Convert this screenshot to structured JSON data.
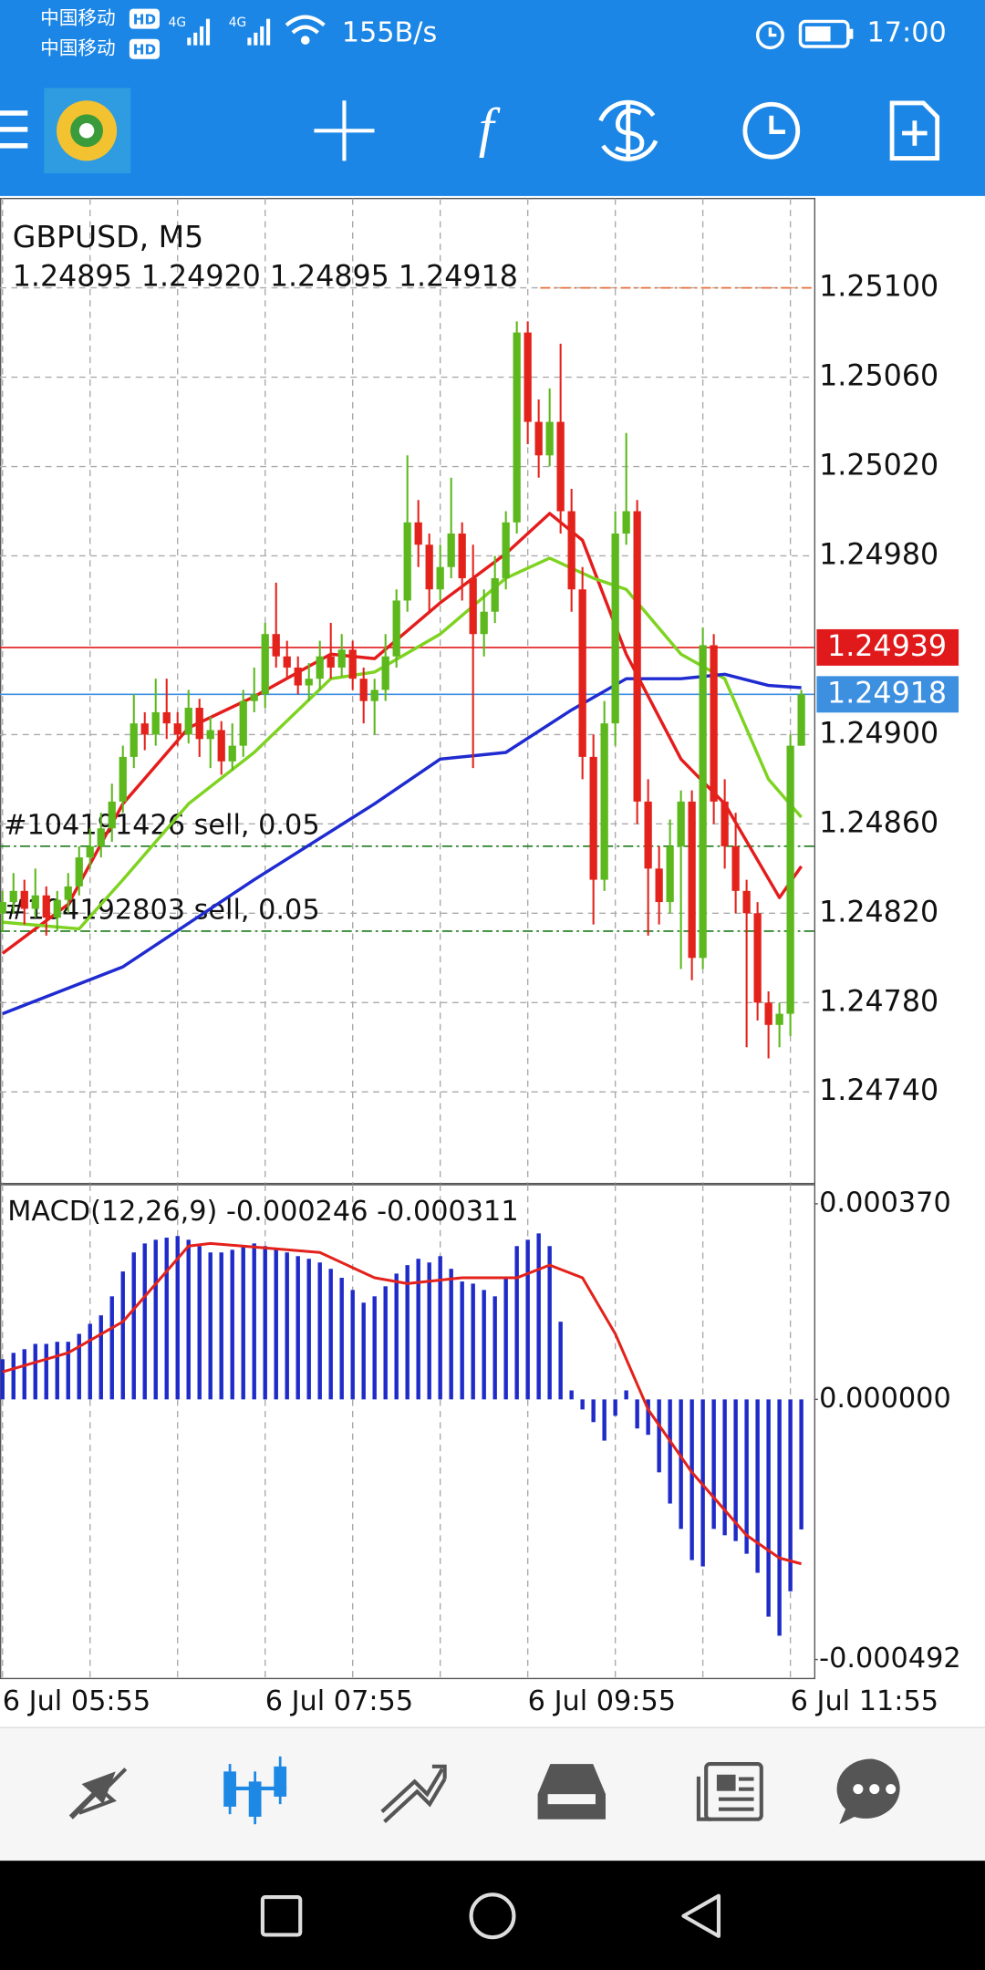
{
  "status_bar": {
    "carrier_1": "中国移动",
    "carrier_2": "中国移动",
    "hd_1": "HD",
    "hd_2": "HD",
    "network_1": "4G",
    "network_2": "4G",
    "speed": "155B/s",
    "time": "17:00"
  },
  "chart_data": [
    {
      "type": "candlestick",
      "title": "GBPUSD, M5",
      "subtitle": "1.24895 1.24920 1.24895 1.24918",
      "x": [
        0,
        1,
        2,
        3,
        4,
        5,
        6,
        7,
        8,
        9,
        10,
        11,
        12,
        13,
        14,
        15,
        16,
        17,
        18,
        19,
        20,
        21,
        22,
        23,
        24,
        25,
        26,
        27,
        28,
        29,
        30,
        31,
        32,
        33,
        34,
        35,
        36,
        37,
        38,
        39,
        40,
        41,
        42,
        43,
        44,
        45,
        46,
        47,
        48,
        49,
        50,
        51,
        52,
        53,
        54,
        55,
        56,
        57,
        58,
        59,
        60,
        61,
        62,
        63,
        64,
        65,
        66,
        67,
        68,
        69,
        70,
        71,
        72,
        73
      ],
      "open": [
        1.2482,
        1.24825,
        1.2483,
        1.24822,
        1.24828,
        1.24818,
        1.24826,
        1.24832,
        1.24845,
        1.2485,
        1.24858,
        1.2487,
        1.2489,
        1.24905,
        1.249,
        1.2491,
        1.24905,
        1.249,
        1.24912,
        1.24898,
        1.24902,
        1.24888,
        1.24895,
        1.24915,
        1.24918,
        1.24945,
        1.24935,
        1.2493,
        1.24922,
        1.24925,
        1.24935,
        1.2493,
        1.24938,
        1.24925,
        1.24915,
        1.2492,
        1.24935,
        1.2496,
        1.24995,
        1.24985,
        1.24965,
        1.24975,
        1.2499,
        1.2497,
        1.24945,
        1.24955,
        1.2497,
        1.24995,
        1.2508,
        1.2504,
        1.25025,
        1.2504,
        1.25,
        1.24965,
        1.2489,
        1.24835,
        1.24905,
        1.2499,
        1.25,
        1.2487,
        1.2484,
        1.24825,
        1.2485,
        1.2487,
        1.248,
        1.2494,
        1.2487,
        1.2485,
        1.2483,
        1.2482,
        1.2478,
        1.2477,
        1.24775,
        1.24895
      ],
      "high": [
        1.2483,
        1.24838,
        1.24835,
        1.2484,
        1.24832,
        1.2483,
        1.24838,
        1.2485,
        1.24858,
        1.24865,
        1.24878,
        1.24895,
        1.24918,
        1.2491,
        1.24925,
        1.24925,
        1.2491,
        1.2492,
        1.24916,
        1.24908,
        1.24906,
        1.24905,
        1.2492,
        1.2493,
        1.2495,
        1.24968,
        1.24942,
        1.24935,
        1.24932,
        1.24942,
        1.2495,
        1.24945,
        1.24942,
        1.2493,
        1.24925,
        1.24945,
        1.24965,
        1.25025,
        1.25005,
        1.2499,
        1.24985,
        1.25015,
        1.24995,
        1.24985,
        1.24965,
        1.2498,
        1.25,
        1.25085,
        1.25085,
        1.2505,
        1.25055,
        1.25075,
        1.2501,
        1.24975,
        1.249,
        1.24915,
        1.25,
        1.25035,
        1.25005,
        1.2488,
        1.2485,
        1.24862,
        1.24875,
        1.24875,
        1.24948,
        1.24945,
        1.2488,
        1.24865,
        1.24835,
        1.24825,
        1.24785,
        1.2478,
        1.249,
        1.2492
      ],
      "low": [
        1.24812,
        1.2482,
        1.24815,
        1.24818,
        1.2481,
        1.24812,
        1.2482,
        1.24828,
        1.2484,
        1.24845,
        1.24852,
        1.24865,
        1.24885,
        1.24893,
        1.24895,
        1.24898,
        1.24895,
        1.24896,
        1.2489,
        1.24885,
        1.24882,
        1.24884,
        1.2489,
        1.2491,
        1.24912,
        1.2493,
        1.24925,
        1.24918,
        1.24915,
        1.2492,
        1.24925,
        1.24926,
        1.2492,
        1.24905,
        1.249,
        1.24915,
        1.2493,
        1.24955,
        1.24975,
        1.24955,
        1.2496,
        1.2497,
        1.2496,
        1.24885,
        1.24935,
        1.2495,
        1.24965,
        1.2499,
        1.2503,
        1.25015,
        1.2502,
        1.2499,
        1.24955,
        1.2488,
        1.24815,
        1.2483,
        1.24895,
        1.24985,
        1.2486,
        1.2481,
        1.24815,
        1.2482,
        1.24795,
        1.2479,
        1.24795,
        1.2486,
        1.2484,
        1.2482,
        1.2476,
        1.24772,
        1.24755,
        1.2476,
        1.24765,
        1.24895
      ],
      "close": [
        1.24825,
        1.2483,
        1.24822,
        1.24828,
        1.24818,
        1.24826,
        1.24832,
        1.24845,
        1.2485,
        1.24858,
        1.2487,
        1.2489,
        1.24905,
        1.249,
        1.2491,
        1.24905,
        1.249,
        1.24912,
        1.24898,
        1.24902,
        1.24888,
        1.24895,
        1.24915,
        1.24918,
        1.24945,
        1.24935,
        1.2493,
        1.24922,
        1.24925,
        1.24935,
        1.2493,
        1.24938,
        1.24925,
        1.24915,
        1.2492,
        1.24935,
        1.2496,
        1.24995,
        1.24985,
        1.24965,
        1.24975,
        1.2499,
        1.2497,
        1.24945,
        1.24955,
        1.2497,
        1.24995,
        1.2508,
        1.2504,
        1.25025,
        1.2504,
        1.25,
        1.24965,
        1.2489,
        1.24835,
        1.24905,
        1.2499,
        1.25,
        1.2487,
        1.2484,
        1.24825,
        1.2485,
        1.2487,
        1.248,
        1.2494,
        1.2487,
        1.2485,
        1.2483,
        1.2482,
        1.2478,
        1.2477,
        1.24775,
        1.24895,
        1.24918
      ],
      "up_color": "#5cb81c",
      "down_color": "#e3221b",
      "series": [
        {
          "color": "#e51c1c",
          "x": [
            0,
            6,
            11,
            17,
            23,
            30,
            34,
            40,
            46,
            50,
            53,
            57,
            62,
            66,
            71,
            73
          ],
          "values": [
            1.24802,
            1.24824,
            1.24869,
            1.24903,
            1.24917,
            1.24936,
            1.24934,
            1.24959,
            1.24981,
            1.24999,
            1.24987,
            1.24936,
            1.24889,
            1.24869,
            1.24827,
            1.24841
          ]
        },
        {
          "color": "#7ed321",
          "x": [
            0,
            7,
            11,
            17,
            23,
            30,
            34,
            40,
            46,
            50,
            54,
            57,
            62,
            66,
            70,
            73
          ],
          "values": [
            1.24816,
            1.24813,
            1.24835,
            1.24869,
            1.24892,
            1.24925,
            1.24928,
            1.24945,
            1.2497,
            1.24979,
            1.2497,
            1.24965,
            1.24936,
            1.24925,
            1.2488,
            1.24863
          ]
        },
        {
          "color": "#1f2bd1",
          "x": [
            0,
            11,
            23,
            34,
            40,
            46,
            52,
            57,
            62,
            66,
            70,
            73
          ],
          "values": [
            1.24775,
            1.24796,
            1.24835,
            1.24869,
            1.24889,
            1.24892,
            1.24911,
            1.24925,
            1.24925,
            1.24927,
            1.24922,
            1.24921
          ]
        }
      ],
      "xlim": [
        -0.23,
        74.17
      ],
      "xticks": [
        {
          "value": 0,
          "label": "6 Jul 05:55"
        },
        {
          "value": 24,
          "label": "6 Jul 07:55"
        },
        {
          "value": 48,
          "label": "6 Jul 09:55"
        },
        {
          "value": 72,
          "label": "6 Jul 11:55"
        }
      ],
      "xminor": [
        8,
        16,
        32,
        40,
        56,
        64
      ],
      "ylim": [
        1.24699,
        1.2514
      ],
      "yticks": [
        {
          "value": 1.251,
          "label": "1.25100"
        },
        {
          "value": 1.2506,
          "label": "1.25060"
        },
        {
          "value": 1.2502,
          "label": "1.25020"
        },
        {
          "value": 1.2498,
          "label": "1.24980"
        },
        {
          "value": 1.249,
          "label": "1.24900"
        },
        {
          "value": 1.2486,
          "label": "1.24860"
        },
        {
          "value": 1.2482,
          "label": "1.24820"
        },
        {
          "value": 1.2478,
          "label": "1.24780"
        },
        {
          "value": 1.2474,
          "label": "1.24740"
        }
      ],
      "grid": true,
      "levels": [
        {
          "value": 1.251,
          "color": "#e8703a"
        },
        {
          "value": 1.24939,
          "label": "1.24939",
          "color": "#e0191b"
        },
        {
          "value": 1.24918,
          "label": "1.24918",
          "color": "#3d8fe0"
        }
      ],
      "orders": [
        {
          "value": 1.2485,
          "label": "#104191426 sell, 0.05",
          "color": "#1a7a1a"
        },
        {
          "value": 1.24812,
          "label": "#104192803 sell, 0.05",
          "color": "#1a7a1a"
        }
      ]
    },
    {
      "type": "macd",
      "title": "MACD(12,26,9) -0.000246 -0.000311",
      "x": [
        0,
        1,
        2,
        3,
        4,
        5,
        6,
        7,
        8,
        9,
        10,
        11,
        12,
        13,
        14,
        15,
        16,
        17,
        18,
        19,
        20,
        21,
        22,
        23,
        24,
        25,
        26,
        27,
        28,
        29,
        30,
        31,
        32,
        33,
        34,
        35,
        36,
        37,
        38,
        39,
        40,
        41,
        42,
        43,
        44,
        45,
        46,
        47,
        48,
        49,
        50,
        51,
        52,
        53,
        54,
        55,
        56,
        57,
        58,
        59,
        60,
        61,
        62,
        63,
        64,
        65,
        66,
        67,
        68,
        69,
        70,
        71,
        72,
        73
      ],
      "values": [
        7.6e-05,
        8.8e-05,
        9.5e-05,
        0.000105,
        0.000105,
        0.000109,
        0.000109,
        0.000124,
        0.000143,
        0.000159,
        0.000195,
        0.000242,
        0.000278,
        0.000295,
        0.000302,
        0.000306,
        0.000309,
        0.000302,
        0.00029,
        0.000278,
        0.000278,
        0.000283,
        0.00029,
        0.000295,
        0.00029,
        0.000283,
        0.000278,
        0.000271,
        0.000266,
        0.000259,
        0.000247,
        0.00023,
        0.000207,
        0.000183,
        0.000195,
        0.000214,
        0.000238,
        0.000254,
        0.000266,
        0.000259,
        0.000271,
        0.000247,
        0.000223,
        0.000219,
        0.000207,
        0.000195,
        0.00023,
        0.00029,
        0.000302,
        0.000314,
        0.00029,
        0.000147,
        1.7e-05,
        -1.9e-05,
        -4.3e-05,
        -7.8e-05,
        -3.1e-05,
        1.7e-05,
        -5.5e-05,
        -6.7e-05,
        -0.000138,
        -0.000197,
        -0.000245,
        -0.000304,
        -0.000316,
        -0.000245,
        -0.000257,
        -0.000268,
        -0.000292,
        -0.000328,
        -0.000411,
        -0.000447,
        -0.000363,
        -0.000246
      ],
      "color": "#1f2bc8",
      "signal": {
        "color": "#e3221b",
        "x": [
          0,
          6,
          11,
          17,
          19,
          29,
          34,
          37,
          42,
          47,
          50,
          53,
          56,
          59,
          63,
          68,
          71,
          73
        ],
        "values": [
          5.2e-05,
          8.8e-05,
          0.000147,
          0.00029,
          0.000295,
          0.000278,
          0.00023,
          0.000219,
          0.00023,
          0.00023,
          0.000254,
          0.00023,
          0.000124,
          -1.9e-05,
          -0.000138,
          -0.000257,
          -0.0003,
          -0.000311
        ]
      },
      "ylim": [
        -0.000528,
        0.000406
      ],
      "yticks": [
        {
          "value": 0.00037,
          "label": "0.000370"
        },
        {
          "value": 0,
          "label": "0.000000"
        },
        {
          "value": -0.000492,
          "label": "-0.000492"
        }
      ]
    }
  ]
}
